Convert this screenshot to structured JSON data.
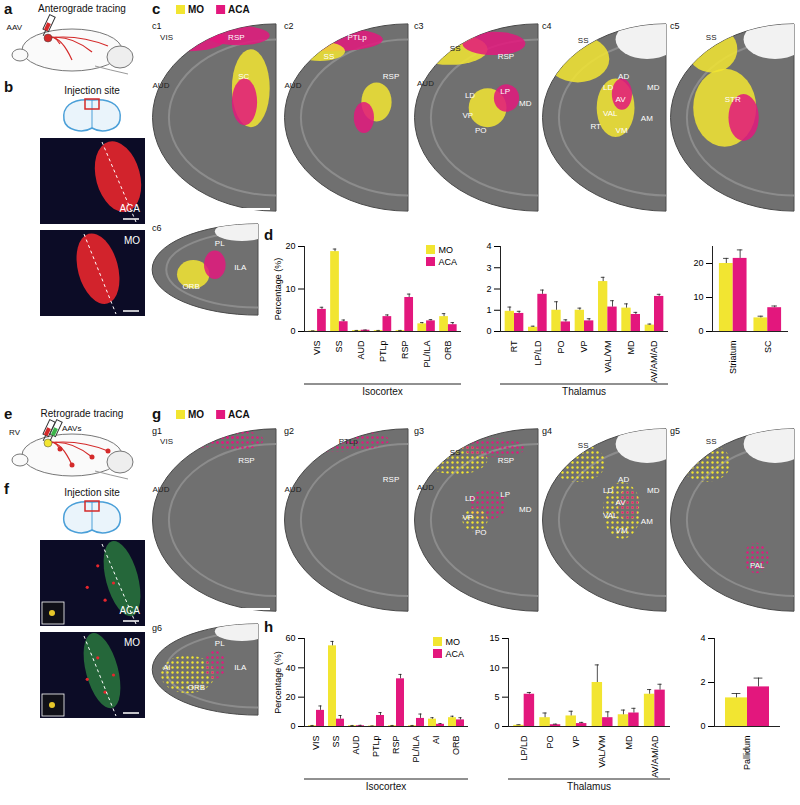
{
  "figure": {
    "a": {
      "label": "a",
      "title": "Anterograde tracing",
      "virus": [
        "AAV"
      ]
    },
    "b": {
      "label": "b",
      "title": "Injection site",
      "images": [
        "ACA",
        "MO"
      ]
    },
    "c": {
      "label": "c",
      "legend": [
        "MO",
        "ACA"
      ],
      "sections": [
        {
          "label": "c1",
          "regions": [
            "VIS",
            "RSP",
            "AUD",
            "SC"
          ]
        },
        {
          "label": "c2",
          "regions": [
            "SS",
            "PTLp",
            "AUD",
            "RSP"
          ]
        },
        {
          "label": "c3",
          "regions": [
            "SS",
            "RSP",
            "AUD",
            "LD",
            "LP",
            "MD",
            "VP",
            "PO"
          ]
        },
        {
          "label": "c4",
          "regions": [
            "SS",
            "AD",
            "LD",
            "MD",
            "AV",
            "VAL",
            "RT",
            "AM",
            "VM"
          ]
        },
        {
          "label": "c5",
          "regions": [
            "SS",
            "STR"
          ]
        },
        {
          "label": "c6",
          "regions": [
            "PL",
            "ILA",
            "ORB"
          ]
        }
      ]
    },
    "d": {
      "label": "d"
    },
    "e": {
      "label": "e",
      "title": "Retrograde tracing",
      "virus": [
        "RV",
        "AAVs"
      ]
    },
    "f": {
      "label": "f",
      "title": "Injection site",
      "images": [
        "ACA",
        "MO"
      ]
    },
    "g": {
      "label": "g",
      "legend": [
        "MO",
        "ACA"
      ],
      "sections": [
        {
          "label": "g1",
          "regions": [
            "VIS",
            "AUD",
            "RSP"
          ]
        },
        {
          "label": "g2",
          "regions": [
            "PTLp",
            "AUD",
            "RSP"
          ]
        },
        {
          "label": "g3",
          "regions": [
            "SS",
            "RSP",
            "AUD",
            "LD",
            "LP",
            "VP",
            "PO",
            "MD"
          ]
        },
        {
          "label": "g4",
          "regions": [
            "SS",
            "AD",
            "LD",
            "MD",
            "AV",
            "VAL",
            "VM",
            "AM"
          ]
        },
        {
          "label": "g5",
          "regions": [
            "SS",
            "PAL"
          ]
        },
        {
          "label": "g6",
          "regions": [
            "PL",
            "ILA",
            "AI",
            "ORB"
          ]
        }
      ]
    },
    "h": {
      "label": "h"
    }
  },
  "chart_data": [
    {
      "type": "bar",
      "xlabel": "Isocortex",
      "ylabel": "Percentage (%)",
      "legend": "top-right",
      "categories": [
        "VIS",
        "SS",
        "AUD",
        "PTLp",
        "RSP",
        "PL/ILA",
        "ORB"
      ],
      "series": [
        {
          "name": "MO",
          "color": "#f2e531",
          "values": [
            0.1,
            18.8,
            0.2,
            0.2,
            0.2,
            1.8,
            3.5
          ],
          "errors": [
            0.05,
            0.6,
            0.05,
            0.05,
            0.05,
            0.3,
            0.7
          ]
        },
        {
          "name": "ACA",
          "color": "#e3177d",
          "values": [
            5.2,
            2.3,
            0.3,
            3.5,
            8.0,
            2.5,
            1.6
          ],
          "errors": [
            0.5,
            0.4,
            0.05,
            0.4,
            0.8,
            0.3,
            0.5
          ]
        }
      ],
      "ylim": [
        0,
        20
      ],
      "yticks": [
        0,
        10,
        20
      ]
    },
    {
      "type": "bar",
      "xlabel": "Thalamus",
      "categories": [
        "RT",
        "LP/LD",
        "PO",
        "VP",
        "VAL/VM",
        "MD",
        "AV/AM/AD"
      ],
      "series": [
        {
          "name": "MO",
          "color": "#f2e531",
          "values": [
            0.95,
            0.2,
            1.0,
            1.0,
            2.35,
            1.1,
            0.3
          ],
          "errors": [
            0.2,
            0.05,
            0.4,
            0.1,
            0.2,
            0.2,
            0.05
          ]
        },
        {
          "name": "ACA",
          "color": "#e3177d",
          "values": [
            0.85,
            1.75,
            0.45,
            0.5,
            1.15,
            0.8,
            1.65
          ],
          "errors": [
            0.1,
            0.2,
            0.1,
            0.1,
            0.3,
            0.1,
            0.1
          ]
        }
      ],
      "ylim": [
        0,
        4
      ],
      "yticks": [
        0,
        1,
        2,
        3,
        4
      ]
    },
    {
      "type": "bar",
      "categories": [
        "Striatum",
        "SC"
      ],
      "series": [
        {
          "name": "MO",
          "color": "#f2e531",
          "values": [
            20,
            4
          ],
          "errors": [
            1.5,
            0.5
          ]
        },
        {
          "name": "ACA",
          "color": "#e3177d",
          "values": [
            21.5,
            7
          ],
          "errors": [
            2.5,
            0.5
          ]
        }
      ],
      "ylim": [
        0,
        25
      ],
      "yticks": [
        0,
        10,
        20
      ]
    },
    {
      "type": "bar",
      "xlabel": "Isocortex",
      "ylabel": "Percentage (%)",
      "legend": "top-right",
      "categories": [
        "VIS",
        "SS",
        "AUD",
        "PTLp",
        "RSP",
        "PL/ILA",
        "AI",
        "ORB"
      ],
      "series": [
        {
          "name": "MO",
          "color": "#f2e531",
          "values": [
            0.5,
            55,
            0.5,
            0.3,
            0.5,
            0.5,
            5,
            6
          ],
          "errors": [
            0.2,
            3,
            0.2,
            0.1,
            0.2,
            0.2,
            1,
            1
          ]
        },
        {
          "name": "ACA",
          "color": "#e3177d",
          "values": [
            11,
            5,
            0.5,
            7.5,
            32.5,
            5.5,
            1.5,
            4.5
          ],
          "errors": [
            3,
            2.5,
            0.3,
            2,
            3,
            3,
            0.5,
            1.5
          ]
        }
      ],
      "ylim": [
        0,
        60
      ],
      "yticks": [
        0,
        20,
        40,
        60
      ]
    },
    {
      "type": "bar",
      "xlabel": "Thalamus",
      "categories": [
        "LP/LD",
        "PO",
        "VP",
        "VAL/VM",
        "MD",
        "AV/AM/AD"
      ],
      "series": [
        {
          "name": "MO",
          "color": "#f2e531",
          "values": [
            0.2,
            1.5,
            1.8,
            7.5,
            2,
            5.5
          ],
          "errors": [
            0.1,
            0.8,
            0.8,
            3,
            0.8,
            0.8
          ]
        },
        {
          "name": "ACA",
          "color": "#e3177d",
          "values": [
            5.5,
            0.3,
            0.5,
            1.5,
            2.3,
            6.2
          ],
          "errors": [
            0.3,
            0.1,
            0.2,
            1,
            0.8,
            1
          ]
        }
      ],
      "ylim": [
        0,
        15
      ],
      "yticks": [
        0,
        5,
        10,
        15
      ]
    },
    {
      "type": "bar",
      "categories": [
        "Pallidum"
      ],
      "series": [
        {
          "name": "MO",
          "color": "#f2e531",
          "values": [
            1.3
          ],
          "errors": [
            0.2
          ]
        },
        {
          "name": "ACA",
          "color": "#e3177d",
          "values": [
            1.8
          ],
          "errors": [
            0.4
          ]
        }
      ],
      "ylim": [
        0,
        4
      ],
      "yticks": [
        0,
        2,
        4
      ]
    }
  ]
}
